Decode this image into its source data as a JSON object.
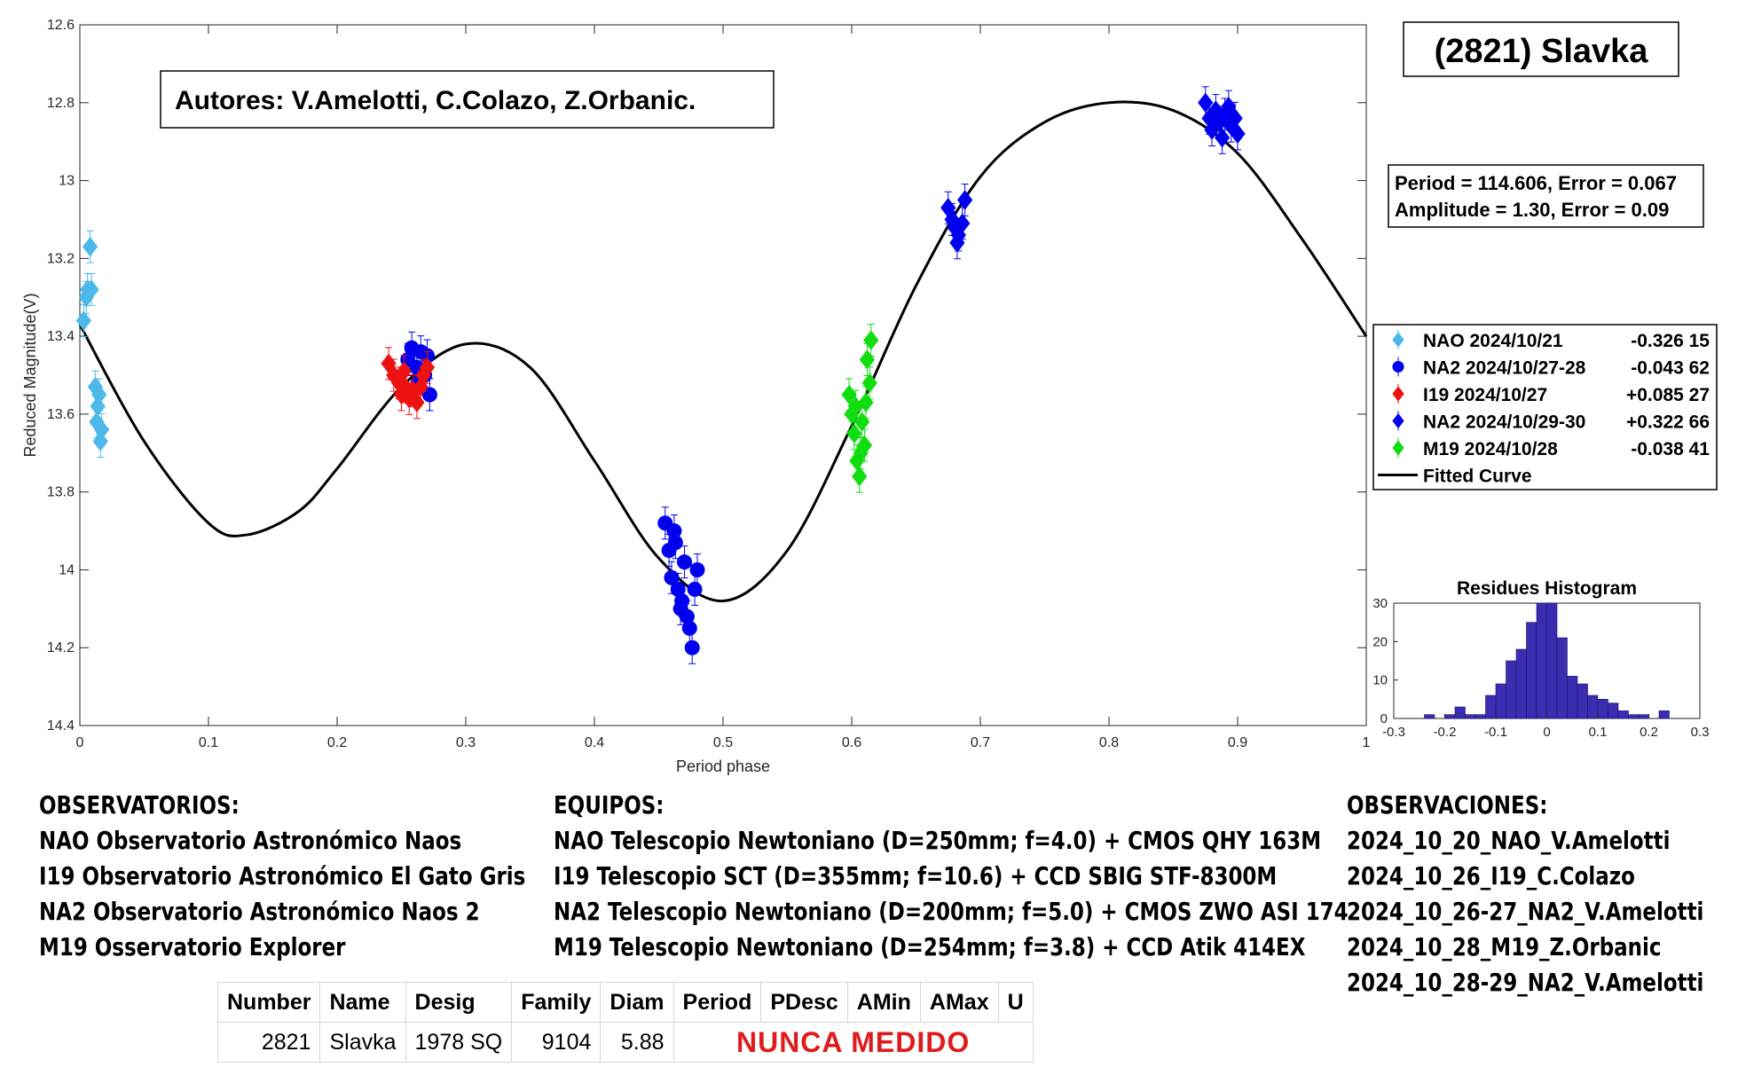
{
  "chart_data": {
    "type": "scatter",
    "title": "(2821) Slavka",
    "xlabel": "Period phase",
    "ylabel": "Reduced Magnitude(V)",
    "xlim": [
      0,
      1
    ],
    "ylim": [
      14.4,
      12.6
    ],
    "y_reversed": true,
    "x_ticks": [
      "0",
      "0.1",
      "0.2",
      "0.3",
      "0.4",
      "0.5",
      "0.6",
      "0.7",
      "0.8",
      "0.9",
      "1"
    ],
    "y_ticks": [
      "12.6",
      "12.8",
      "13",
      "13.2",
      "13.4",
      "13.6",
      "13.8",
      "14",
      "14.2",
      "14.4"
    ],
    "grid": false,
    "legend_placement": "right",
    "authors": "Autores: V.Amelotti, C.Colazo, Z.Orbanic.",
    "fit_text": [
      "Period =  114.606, Error = 0.067",
      "Amplitude = 1.30, Error = 0.09"
    ],
    "series": [
      {
        "name": "NAO 2024/10/21",
        "offset": "-0.326 15",
        "color": "#4cb9ea",
        "marker": "diamond",
        "points": [
          [
            0.003,
            13.36
          ],
          [
            0.005,
            13.3
          ],
          [
            0.006,
            13.28
          ],
          [
            0.008,
            13.17
          ],
          [
            0.009,
            13.28
          ],
          [
            0.012,
            13.53
          ],
          [
            0.014,
            13.58
          ],
          [
            0.013,
            13.62
          ],
          [
            0.015,
            13.55
          ],
          [
            0.016,
            13.67
          ],
          [
            0.017,
            13.64
          ]
        ]
      },
      {
        "name": "NA2 2024/10/27-28",
        "offset": "-0.043 62",
        "color": "#0000ee",
        "marker": "circle",
        "points": [
          [
            0.255,
            13.46
          ],
          [
            0.258,
            13.43
          ],
          [
            0.262,
            13.48
          ],
          [
            0.265,
            13.44
          ],
          [
            0.268,
            13.5
          ],
          [
            0.27,
            13.45
          ],
          [
            0.263,
            13.52
          ],
          [
            0.272,
            13.55
          ],
          [
            0.455,
            13.88
          ],
          [
            0.458,
            13.95
          ],
          [
            0.46,
            14.02
          ],
          [
            0.462,
            13.9
          ],
          [
            0.465,
            14.05
          ],
          [
            0.467,
            14.1
          ],
          [
            0.47,
            13.98
          ],
          [
            0.472,
            14.12
          ],
          [
            0.474,
            14.15
          ],
          [
            0.476,
            14.2
          ],
          [
            0.478,
            14.05
          ],
          [
            0.48,
            14.0
          ],
          [
            0.468,
            14.08
          ],
          [
            0.463,
            13.93
          ]
        ]
      },
      {
        "name": "I19 2024/10/27",
        "offset": "+0.085 27",
        "color": "#ee1111",
        "marker": "diamond",
        "points": [
          [
            0.24,
            13.47
          ],
          [
            0.244,
            13.5
          ],
          [
            0.248,
            13.52
          ],
          [
            0.25,
            13.55
          ],
          [
            0.253,
            13.53
          ],
          [
            0.256,
            13.56
          ],
          [
            0.259,
            13.54
          ],
          [
            0.262,
            13.57
          ],
          [
            0.265,
            13.53
          ],
          [
            0.267,
            13.5
          ],
          [
            0.27,
            13.48
          ],
          [
            0.252,
            13.49
          ]
        ]
      },
      {
        "name": "NA2 2024/10/29-30",
        "offset": "+0.322 66",
        "color": "#0000ee",
        "marker": "diamond",
        "points": [
          [
            0.675,
            13.07
          ],
          [
            0.678,
            13.1
          ],
          [
            0.68,
            13.12
          ],
          [
            0.683,
            13.14
          ],
          [
            0.686,
            13.11
          ],
          [
            0.688,
            13.05
          ],
          [
            0.682,
            13.16
          ],
          [
            0.875,
            12.8
          ],
          [
            0.878,
            12.84
          ],
          [
            0.88,
            12.87
          ],
          [
            0.883,
            12.82
          ],
          [
            0.886,
            12.85
          ],
          [
            0.888,
            12.89
          ],
          [
            0.89,
            12.83
          ],
          [
            0.893,
            12.81
          ],
          [
            0.895,
            12.86
          ],
          [
            0.898,
            12.84
          ],
          [
            0.9,
            12.88
          ]
        ]
      },
      {
        "name": "M19 2024/10/28",
        "offset": "-0.038 41",
        "color": "#11dd11",
        "marker": "diamond",
        "points": [
          [
            0.598,
            13.55
          ],
          [
            0.6,
            13.6
          ],
          [
            0.602,
            13.65
          ],
          [
            0.604,
            13.72
          ],
          [
            0.606,
            13.76
          ],
          [
            0.603,
            13.58
          ],
          [
            0.608,
            13.62
          ],
          [
            0.61,
            13.68
          ],
          [
            0.612,
            13.46
          ],
          [
            0.614,
            13.52
          ],
          [
            0.615,
            13.41
          ],
          [
            0.607,
            13.7
          ],
          [
            0.611,
            13.57
          ]
        ]
      },
      {
        "name": "Fitted Curve",
        "offset": "",
        "color": "#000000",
        "marker": "line",
        "points": [
          [
            0,
            13.37
          ],
          [
            0.05,
            13.67
          ],
          [
            0.1,
            13.88
          ],
          [
            0.13,
            13.91
          ],
          [
            0.17,
            13.85
          ],
          [
            0.2,
            13.74
          ],
          [
            0.25,
            13.53
          ],
          [
            0.3,
            13.42
          ],
          [
            0.35,
            13.48
          ],
          [
            0.4,
            13.72
          ],
          [
            0.45,
            13.97
          ],
          [
            0.5,
            14.08
          ],
          [
            0.55,
            13.95
          ],
          [
            0.6,
            13.63
          ],
          [
            0.65,
            13.27
          ],
          [
            0.7,
            12.99
          ],
          [
            0.75,
            12.85
          ],
          [
            0.8,
            12.8
          ],
          [
            0.85,
            12.82
          ],
          [
            0.9,
            12.93
          ],
          [
            0.95,
            13.15
          ],
          [
            1.0,
            13.4
          ]
        ]
      }
    ],
    "histogram": {
      "title": "Residues Histogram",
      "xlim": [
        -0.3,
        0.3
      ],
      "ylim": [
        0,
        30
      ],
      "x_ticks": [
        "-0.3",
        "-0.2",
        "-0.1",
        "0",
        "0.1",
        "0.2",
        "0.3"
      ],
      "y_ticks": [
        "0",
        "10",
        "20",
        "30"
      ],
      "bin_width": 0.02,
      "bins": [
        {
          "x": -0.23,
          "count": 1
        },
        {
          "x": -0.19,
          "count": 1
        },
        {
          "x": -0.17,
          "count": 3
        },
        {
          "x": -0.15,
          "count": 1
        },
        {
          "x": -0.13,
          "count": 1
        },
        {
          "x": -0.11,
          "count": 6
        },
        {
          "x": -0.09,
          "count": 9
        },
        {
          "x": -0.07,
          "count": 15
        },
        {
          "x": -0.05,
          "count": 18
        },
        {
          "x": -0.03,
          "count": 25
        },
        {
          "x": -0.01,
          "count": 30
        },
        {
          "x": 0.01,
          "count": 30
        },
        {
          "x": 0.03,
          "count": 21
        },
        {
          "x": 0.05,
          "count": 11
        },
        {
          "x": 0.07,
          "count": 9
        },
        {
          "x": 0.09,
          "count": 6
        },
        {
          "x": 0.11,
          "count": 5
        },
        {
          "x": 0.13,
          "count": 4
        },
        {
          "x": 0.15,
          "count": 2
        },
        {
          "x": 0.17,
          "count": 1
        },
        {
          "x": 0.19,
          "count": 1
        },
        {
          "x": 0.23,
          "count": 2
        }
      ]
    }
  },
  "observatorios": {
    "heading": "OBSERVATORIOS:",
    "lines": [
      "NAO Observatorio Astronómico Naos",
      "I19 Observatorio Astronómico El Gato Gris",
      "NA2 Observatorio Astronómico Naos 2",
      "M19 Osservatorio Explorer"
    ]
  },
  "equipos": {
    "heading": "EQUIPOS:",
    "lines": [
      "NAO Telescopio Newtoniano (D=250mm; f=4.0) + CMOS QHY 163M",
      "I19 Telescopio SCT (D=355mm; f=10.6) + CCD SBIG STF-8300M",
      "NA2 Telescopio Newtoniano (D=200mm; f=5.0) + CMOS ZWO ASI 174",
      "M19 Telescopio Newtoniano (D=254mm; f=3.8) + CCD Atik 414EX"
    ]
  },
  "observaciones": {
    "heading": "OBSERVACIONES:",
    "lines": [
      "2024_10_20_NAO_V.Amelotti",
      "2024_10_26_I19_C.Colazo",
      "2024_10_26-27_NA2_V.Amelotti",
      "2024_10_28_M19_Z.Orbanic",
      "2024_10_28-29_NA2_V.Amelotti"
    ]
  },
  "table": {
    "headers": [
      "Number",
      "Name",
      "Desig",
      "Family",
      "Diam",
      "Period",
      "PDesc",
      "AMin",
      "AMax",
      "U"
    ],
    "row": {
      "number": "2821",
      "name": "Slavka",
      "desig": "1978 SQ",
      "family": "9104",
      "diam": "5.88"
    },
    "note": "NUNCA MEDIDO",
    "note_color": "#e01b1b"
  }
}
